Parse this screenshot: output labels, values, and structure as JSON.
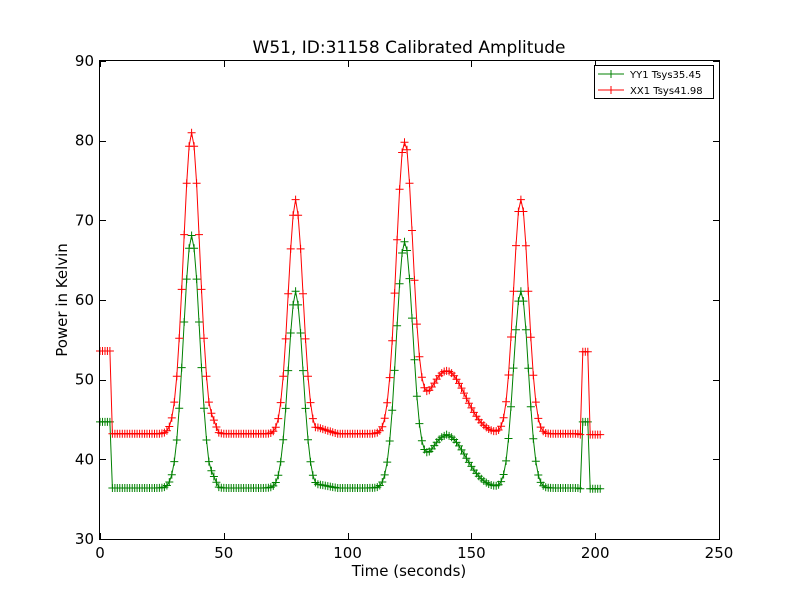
{
  "chart_data": {
    "type": "line",
    "title": "W51, ID:31158 Calibrated Amplitude",
    "xlabel": "Time (seconds)",
    "ylabel": "Power in Kelvin",
    "xlim": [
      0,
      250
    ],
    "ylim": [
      30,
      90
    ],
    "xticks": [
      0,
      50,
      100,
      150,
      200,
      250
    ],
    "yticks": [
      30,
      40,
      50,
      60,
      70,
      80,
      90
    ],
    "grid": false,
    "legend_position": "top-right",
    "marker": "+",
    "series": [
      {
        "name": "YY1 Tsys35.45",
        "color": "#008000",
        "edge_points": {
          "start": [
            [
              0,
              44.7
            ],
            [
              1,
              44.7
            ],
            [
              2,
              44.7
            ],
            [
              3,
              44.7
            ],
            [
              4,
              44.7
            ],
            [
              5,
              36.4
            ],
            [
              6,
              36.4
            ],
            [
              7,
              36.4
            ],
            [
              8,
              36.4
            ],
            [
              9,
              36.4
            ]
          ],
          "end": [
            [
              194,
              36.3
            ],
            [
              195,
              44.7
            ],
            [
              196,
              44.7
            ],
            [
              197,
              44.7
            ],
            [
              198,
              36.3
            ],
            [
              199,
              36.3
            ],
            [
              200,
              36.3
            ],
            [
              201,
              36.3
            ],
            [
              202,
              36.3
            ]
          ]
        },
        "baseline": 36.4,
        "drift": 0.0,
        "peaks": [
          {
            "center": 37.0,
            "amplitude": 31.5,
            "width": 3.3
          },
          {
            "center": 79.0,
            "amplitude": 24.3,
            "width": 3.0
          },
          {
            "center": 123.0,
            "amplitude": 30.5,
            "width": 3.3
          },
          {
            "center": 140.0,
            "amplitude": 6.6,
            "width": 7.5
          },
          {
            "center": 170.0,
            "amplitude": 24.8,
            "width": 3.0
          }
        ],
        "plateaus": [
          [
            40,
            43.6
          ],
          [
            88,
            37.0
          ],
          [
            131,
            39.0
          ],
          [
            150,
            38.7
          ],
          [
            178,
            36.4
          ]
        ],
        "peak_values": [
          [
            37,
            68.1
          ],
          [
            79,
            61.1
          ],
          [
            123,
            67.3
          ],
          [
            140,
            43.1
          ],
          [
            170,
            61.1
          ]
        ]
      },
      {
        "name": "XX1 Tsys41.98",
        "color": "#ff0000",
        "edge_points": {
          "start": [
            [
              0,
              53.6
            ],
            [
              1,
              53.6
            ],
            [
              2,
              53.6
            ],
            [
              3,
              53.6
            ],
            [
              4,
              53.6
            ],
            [
              5,
              43.2
            ],
            [
              6,
              43.2
            ],
            [
              7,
              43.2
            ],
            [
              8,
              43.2
            ],
            [
              9,
              43.2
            ]
          ],
          "end": [
            [
              194,
              43.1
            ],
            [
              195,
              53.5
            ],
            [
              196,
              53.5
            ],
            [
              197,
              53.5
            ],
            [
              198,
              43.1
            ],
            [
              199,
              43.1
            ],
            [
              200,
              43.1
            ],
            [
              201,
              43.1
            ],
            [
              202,
              43.1
            ]
          ]
        },
        "baseline": 43.2,
        "drift": 0.0,
        "peaks": [
          {
            "center": 37.0,
            "amplitude": 37.8,
            "width": 3.3
          },
          {
            "center": 79.0,
            "amplitude": 29.0,
            "width": 3.0
          },
          {
            "center": 123.0,
            "amplitude": 36.5,
            "width": 3.3
          },
          {
            "center": 140.0,
            "amplitude": 7.9,
            "width": 7.5
          },
          {
            "center": 170.0,
            "amplitude": 29.5,
            "width": 3.0
          }
        ],
        "plateaus": [
          [
            40,
            51.8
          ],
          [
            88,
            44.2
          ],
          [
            131,
            46.3
          ],
          [
            150,
            46.0
          ],
          [
            178,
            43.2
          ]
        ],
        "peak_values": [
          [
            37,
            81.0
          ],
          [
            79,
            72.6
          ],
          [
            123,
            79.8
          ],
          [
            140,
            51.1
          ],
          [
            170,
            72.6
          ]
        ]
      }
    ]
  }
}
